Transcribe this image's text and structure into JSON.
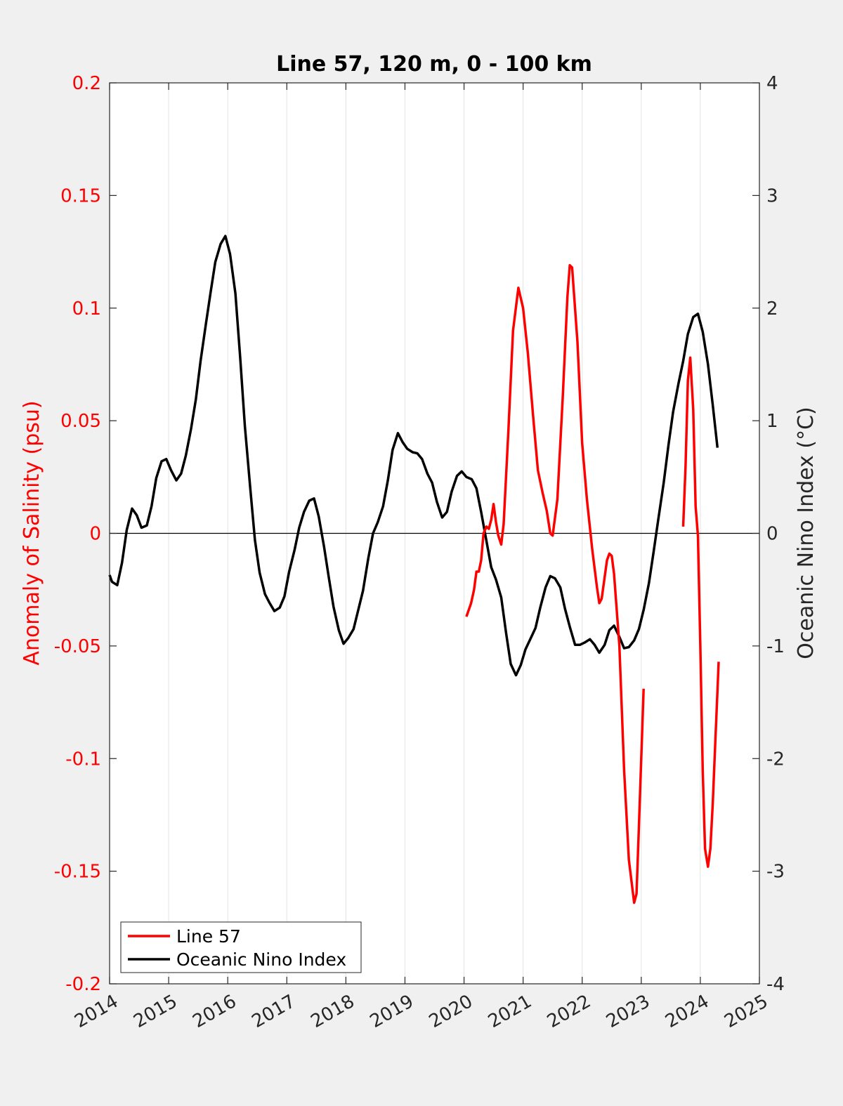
{
  "chart_data": {
    "type": "line",
    "title": "Line 57, 120 m, 0 - 100 km",
    "ylabel_left": "Anomaly of Salinity (psu)",
    "ylabel_right": "Oceanic Nino Index (°C)",
    "xlim": [
      2014,
      2025
    ],
    "ylim_left": [
      -0.2,
      0.2
    ],
    "ylim_right": [
      -4,
      4
    ],
    "xticks": [
      "2014",
      "2015",
      "2016",
      "2017",
      "2018",
      "2019",
      "2020",
      "2021",
      "2022",
      "2023",
      "2024",
      "2025"
    ],
    "yticks_left": [
      "0.2",
      "0.15",
      "0.1",
      "0.05",
      "0",
      "-0.05",
      "-0.1",
      "-0.15",
      "-0.2"
    ],
    "yticks_right": [
      "4",
      "3",
      "2",
      "1",
      "0",
      "-1",
      "-2",
      "-3",
      "-4"
    ],
    "xgrid": true,
    "zero_line": true,
    "legend_position": "bottom-left",
    "colors": {
      "line57": "#ff0000",
      "oni": "#000000"
    },
    "series": [
      {
        "name": "Line 57",
        "axis": "left",
        "color": "#ff0000",
        "segments": [
          [
            [
              2020.04,
              -0.037
            ],
            [
              2020.12,
              -0.031
            ],
            [
              2020.17,
              -0.025
            ],
            [
              2020.21,
              -0.017
            ],
            [
              2020.25,
              -0.017
            ],
            [
              2020.29,
              -0.012
            ],
            [
              2020.33,
              0.0
            ],
            [
              2020.38,
              0.003
            ],
            [
              2020.42,
              0.002
            ],
            [
              2020.46,
              0.006
            ],
            [
              2020.5,
              0.013
            ],
            [
              2020.54,
              0.005
            ],
            [
              2020.58,
              -0.001
            ],
            [
              2020.63,
              -0.005
            ],
            [
              2020.67,
              0.004
            ],
            [
              2020.75,
              0.045
            ],
            [
              2020.83,
              0.09
            ],
            [
              2020.92,
              0.109
            ],
            [
              2021.0,
              0.1
            ],
            [
              2021.08,
              0.08
            ],
            [
              2021.17,
              0.052
            ],
            [
              2021.25,
              0.028
            ],
            [
              2021.33,
              0.018
            ],
            [
              2021.4,
              0.01
            ],
            [
              2021.46,
              0.0
            ],
            [
              2021.5,
              -0.001
            ],
            [
              2021.58,
              0.015
            ],
            [
              2021.67,
              0.06
            ],
            [
              2021.75,
              0.105
            ],
            [
              2021.79,
              0.119
            ],
            [
              2021.83,
              0.118
            ],
            [
              2021.92,
              0.085
            ],
            [
              2022.0,
              0.04
            ],
            [
              2022.08,
              0.015
            ],
            [
              2022.17,
              -0.007
            ],
            [
              2022.25,
              -0.024
            ],
            [
              2022.29,
              -0.031
            ],
            [
              2022.33,
              -0.029
            ],
            [
              2022.42,
              -0.012
            ],
            [
              2022.46,
              -0.009
            ],
            [
              2022.5,
              -0.01
            ],
            [
              2022.54,
              -0.018
            ],
            [
              2022.63,
              -0.05
            ],
            [
              2022.71,
              -0.105
            ],
            [
              2022.79,
              -0.145
            ],
            [
              2022.88,
              -0.164
            ],
            [
              2022.92,
              -0.16
            ],
            [
              2022.96,
              -0.13
            ],
            [
              2023.0,
              -0.1
            ],
            [
              2023.04,
              -0.069
            ]
          ],
          [
            [
              2023.71,
              0.003
            ],
            [
              2023.75,
              0.03
            ],
            [
              2023.79,
              0.068
            ],
            [
              2023.83,
              0.078
            ],
            [
              2023.88,
              0.055
            ],
            [
              2023.92,
              0.012
            ],
            [
              2023.96,
              -0.001
            ],
            [
              2024.0,
              -0.05
            ],
            [
              2024.04,
              -0.105
            ],
            [
              2024.08,
              -0.14
            ],
            [
              2024.13,
              -0.148
            ],
            [
              2024.17,
              -0.14
            ],
            [
              2024.21,
              -0.12
            ],
            [
              2024.25,
              -0.095
            ],
            [
              2024.29,
              -0.07
            ],
            [
              2024.31,
              -0.057
            ]
          ]
        ]
      },
      {
        "name": "Oceanic Nino Index",
        "axis": "right",
        "color": "#000000",
        "segments": [
          [
            [
              2014.0,
              -0.37
            ],
            [
              2014.04,
              -0.43
            ],
            [
              2014.13,
              -0.46
            ],
            [
              2014.21,
              -0.26
            ],
            [
              2014.29,
              0.03
            ],
            [
              2014.38,
              0.22
            ],
            [
              2014.46,
              0.16
            ],
            [
              2014.54,
              0.05
            ],
            [
              2014.63,
              0.07
            ],
            [
              2014.71,
              0.24
            ],
            [
              2014.79,
              0.49
            ],
            [
              2014.88,
              0.64
            ],
            [
              2014.96,
              0.66
            ],
            [
              2015.04,
              0.56
            ],
            [
              2015.13,
              0.47
            ],
            [
              2015.21,
              0.53
            ],
            [
              2015.29,
              0.69
            ],
            [
              2015.38,
              0.93
            ],
            [
              2015.46,
              1.19
            ],
            [
              2015.54,
              1.53
            ],
            [
              2015.63,
              1.86
            ],
            [
              2015.71,
              2.14
            ],
            [
              2015.79,
              2.41
            ],
            [
              2015.88,
              2.57
            ],
            [
              2015.96,
              2.64
            ],
            [
              2016.04,
              2.48
            ],
            [
              2016.13,
              2.13
            ],
            [
              2016.21,
              1.57
            ],
            [
              2016.29,
              0.95
            ],
            [
              2016.38,
              0.41
            ],
            [
              2016.46,
              -0.06
            ],
            [
              2016.54,
              -0.35
            ],
            [
              2016.63,
              -0.54
            ],
            [
              2016.71,
              -0.62
            ],
            [
              2016.79,
              -0.69
            ],
            [
              2016.88,
              -0.66
            ],
            [
              2016.96,
              -0.56
            ],
            [
              2017.04,
              -0.34
            ],
            [
              2017.13,
              -0.15
            ],
            [
              2017.21,
              0.05
            ],
            [
              2017.29,
              0.19
            ],
            [
              2017.38,
              0.29
            ],
            [
              2017.46,
              0.31
            ],
            [
              2017.54,
              0.15
            ],
            [
              2017.63,
              -0.12
            ],
            [
              2017.71,
              -0.39
            ],
            [
              2017.79,
              -0.65
            ],
            [
              2017.88,
              -0.86
            ],
            [
              2017.96,
              -0.98
            ],
            [
              2018.04,
              -0.93
            ],
            [
              2018.13,
              -0.85
            ],
            [
              2018.21,
              -0.68
            ],
            [
              2018.29,
              -0.51
            ],
            [
              2018.38,
              -0.22
            ],
            [
              2018.46,
              0.0
            ],
            [
              2018.54,
              0.1
            ],
            [
              2018.63,
              0.24
            ],
            [
              2018.71,
              0.47
            ],
            [
              2018.79,
              0.74
            ],
            [
              2018.88,
              0.89
            ],
            [
              2018.96,
              0.81
            ],
            [
              2019.04,
              0.75
            ],
            [
              2019.13,
              0.72
            ],
            [
              2019.21,
              0.71
            ],
            [
              2019.29,
              0.66
            ],
            [
              2019.38,
              0.53
            ],
            [
              2019.46,
              0.45
            ],
            [
              2019.54,
              0.28
            ],
            [
              2019.63,
              0.14
            ],
            [
              2019.71,
              0.19
            ],
            [
              2019.79,
              0.37
            ],
            [
              2019.88,
              0.51
            ],
            [
              2019.96,
              0.55
            ],
            [
              2020.04,
              0.5
            ],
            [
              2020.13,
              0.48
            ],
            [
              2020.21,
              0.4
            ],
            [
              2020.29,
              0.19
            ],
            [
              2020.38,
              -0.07
            ],
            [
              2020.46,
              -0.3
            ],
            [
              2020.54,
              -0.41
            ],
            [
              2020.63,
              -0.57
            ],
            [
              2020.71,
              -0.88
            ],
            [
              2020.79,
              -1.16
            ],
            [
              2020.88,
              -1.26
            ],
            [
              2020.96,
              -1.17
            ],
            [
              2021.04,
              -1.03
            ],
            [
              2021.13,
              -0.93
            ],
            [
              2021.21,
              -0.84
            ],
            [
              2021.29,
              -0.66
            ],
            [
              2021.38,
              -0.48
            ],
            [
              2021.46,
              -0.38
            ],
            [
              2021.54,
              -0.4
            ],
            [
              2021.63,
              -0.48
            ],
            [
              2021.71,
              -0.67
            ],
            [
              2021.79,
              -0.83
            ],
            [
              2021.88,
              -0.99
            ],
            [
              2021.96,
              -0.99
            ],
            [
              2022.04,
              -0.97
            ],
            [
              2022.13,
              -0.94
            ],
            [
              2022.21,
              -0.99
            ],
            [
              2022.29,
              -1.06
            ],
            [
              2022.38,
              -0.99
            ],
            [
              2022.46,
              -0.86
            ],
            [
              2022.54,
              -0.82
            ],
            [
              2022.63,
              -0.92
            ],
            [
              2022.71,
              -1.02
            ],
            [
              2022.79,
              -1.01
            ],
            [
              2022.88,
              -0.95
            ],
            [
              2022.96,
              -0.85
            ],
            [
              2023.04,
              -0.68
            ],
            [
              2023.13,
              -0.44
            ],
            [
              2023.21,
              -0.16
            ],
            [
              2023.29,
              0.13
            ],
            [
              2023.38,
              0.45
            ],
            [
              2023.46,
              0.78
            ],
            [
              2023.54,
              1.08
            ],
            [
              2023.63,
              1.33
            ],
            [
              2023.71,
              1.53
            ],
            [
              2023.79,
              1.77
            ],
            [
              2023.88,
              1.92
            ],
            [
              2023.96,
              1.95
            ],
            [
              2024.04,
              1.79
            ],
            [
              2024.13,
              1.5
            ],
            [
              2024.21,
              1.14
            ],
            [
              2024.29,
              0.76
            ]
          ]
        ]
      }
    ]
  }
}
